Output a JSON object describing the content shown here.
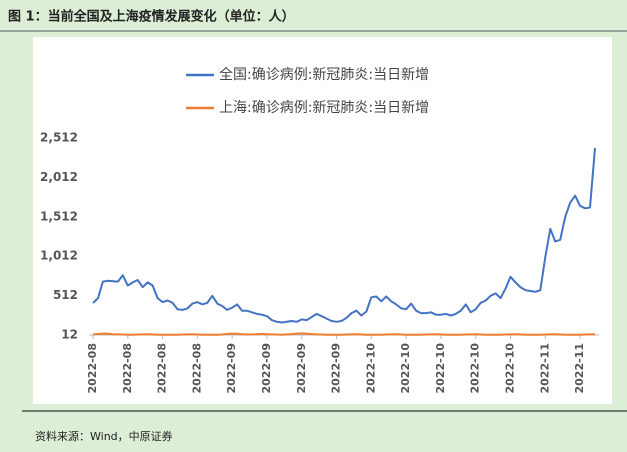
{
  "source": "资料来源：Wind，中原证券",
  "chart_data": {
    "type": "line",
    "title": "图 1：当前全国及上海疫情发展变化（单位：人）",
    "categories": [
      "2022-08",
      null,
      null,
      null,
      null,
      null,
      null,
      "2022-08",
      null,
      null,
      null,
      null,
      null,
      null,
      "2022-08",
      null,
      null,
      null,
      null,
      null,
      null,
      "2022-08",
      null,
      null,
      null,
      null,
      null,
      null,
      "2022-09",
      null,
      null,
      null,
      null,
      null,
      null,
      "2022-09",
      null,
      null,
      null,
      null,
      null,
      null,
      "2022-09",
      null,
      null,
      null,
      null,
      null,
      null,
      "2022-09",
      null,
      null,
      null,
      null,
      null,
      null,
      "2022-10",
      null,
      null,
      null,
      null,
      null,
      null,
      "2022-10",
      null,
      null,
      null,
      null,
      null,
      null,
      "2022-10",
      null,
      null,
      null,
      null,
      null,
      null,
      "2022-10",
      null,
      null,
      null,
      null,
      null,
      null,
      "2022-10",
      null,
      null,
      null,
      null,
      null,
      null,
      "2022-11",
      null,
      null,
      null,
      null,
      null,
      null,
      "2022-11",
      null,
      null,
      null
    ],
    "series": [
      {
        "name": "全国:确诊病例:新冠肺炎:当日新增",
        "color": "#4472c4",
        "values": [
          418,
          480,
          690,
          700,
          695,
          690,
          770,
          640,
          680,
          710,
          620,
          680,
          640,
          480,
          430,
          450,
          420,
          340,
          330,
          350,
          410,
          430,
          400,
          420,
          510,
          410,
          380,
          330,
          360,
          400,
          320,
          320,
          300,
          280,
          270,
          250,
          200,
          180,
          170,
          180,
          190,
          180,
          210,
          200,
          240,
          280,
          250,
          220,
          190,
          180,
          190,
          230,
          290,
          320,
          260,
          310,
          490,
          500,
          440,
          500,
          440,
          400,
          350,
          340,
          410,
          320,
          290,
          290,
          300,
          270,
          270,
          280,
          260,
          280,
          320,
          400,
          300,
          340,
          420,
          450,
          510,
          540,
          480,
          600,
          750,
          680,
          620,
          580,
          570,
          560,
          580,
          1000,
          1360,
          1200,
          1220,
          1510,
          1690,
          1780,
          1650,
          1620,
          1630,
          2385
        ]
      },
      {
        "name": "上海:确诊病例:新冠肺炎:当日新增",
        "color": "#ed7d31",
        "values": [
          20,
          25,
          30,
          28,
          22,
          20,
          18,
          16,
          15,
          18,
          20,
          22,
          18,
          16,
          15,
          14,
          15,
          16,
          18,
          20,
          22,
          18,
          16,
          15,
          14,
          16,
          18,
          25,
          30,
          28,
          22,
          20,
          18,
          24,
          26,
          22,
          20,
          18,
          16,
          20,
          24,
          30,
          32,
          28,
          24,
          20,
          18,
          16,
          15,
          14,
          16,
          18,
          20,
          22,
          18,
          16,
          15,
          14,
          16,
          18,
          20,
          22,
          18,
          16,
          15,
          14,
          16,
          18,
          20,
          22,
          18,
          16,
          15,
          14,
          16,
          18,
          20,
          22,
          18,
          16,
          15,
          14,
          16,
          18,
          20,
          22,
          18,
          16,
          15,
          14,
          16,
          18,
          20,
          22,
          18,
          16,
          15,
          14,
          16,
          18,
          20,
          22
        ]
      }
    ],
    "ylim": [
      12,
      2512
    ],
    "yticks": [
      12,
      512,
      {
        "value": 1012,
        "label": "1,012"
      },
      {
        "value": 1512,
        "label": "1,512"
      },
      {
        "value": 2012,
        "label": "2,012"
      },
      {
        "value": 2512,
        "label": "2,512"
      }
    ],
    "grid": false
  }
}
